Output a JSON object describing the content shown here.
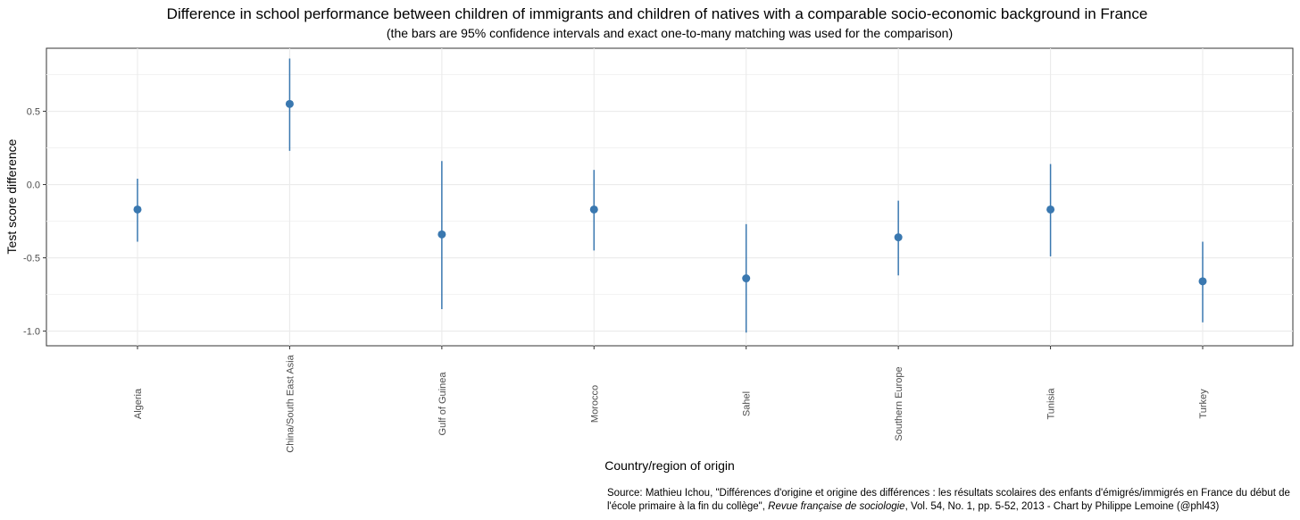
{
  "chart_data": {
    "type": "scatter",
    "title": "Difference in school performance between children of immigrants and children of natives with a comparable socio-economic background in France",
    "subtitle": "(the bars are 95% confidence intervals and exact one-to-many matching was used for the comparison)",
    "xlabel": "Country/region of origin",
    "ylabel": "Test score difference",
    "ylim": [
      -1.1,
      0.93
    ],
    "yticks": [
      -1.0,
      -0.5,
      0.0,
      0.5
    ],
    "ytick_labels": [
      "-1.0",
      "-0.5",
      "0.0",
      "0.5"
    ],
    "grid": true,
    "categories": [
      "Algeria",
      "China/South East Asia",
      "Gulf of Guinea",
      "Morocco",
      "Sahel",
      "Southern Europe",
      "Tunisia",
      "Turkey"
    ],
    "values": [
      -0.17,
      0.55,
      -0.34,
      -0.17,
      -0.64,
      -0.36,
      -0.17,
      -0.66
    ],
    "ci_low": [
      -0.39,
      0.23,
      -0.85,
      -0.45,
      -1.01,
      -0.62,
      -0.49,
      -0.94
    ],
    "ci_high": [
      0.04,
      0.86,
      0.16,
      0.1,
      -0.27,
      -0.11,
      0.14,
      -0.39
    ],
    "color": "#3a78b0"
  },
  "source": {
    "text_before": "Source: Mathieu Ichou, \"Différences d'origine et origine des différences : les résultats scolaires des enfants d'émigrés/immigrés en France du début de l'école primaire à la fin du collège\", ",
    "journal": "Revue française de sociologie",
    "text_after": ", Vol. 54, No. 1, pp. 5-52, 2013 - Chart by Philippe Lemoine (@phl43)"
  }
}
